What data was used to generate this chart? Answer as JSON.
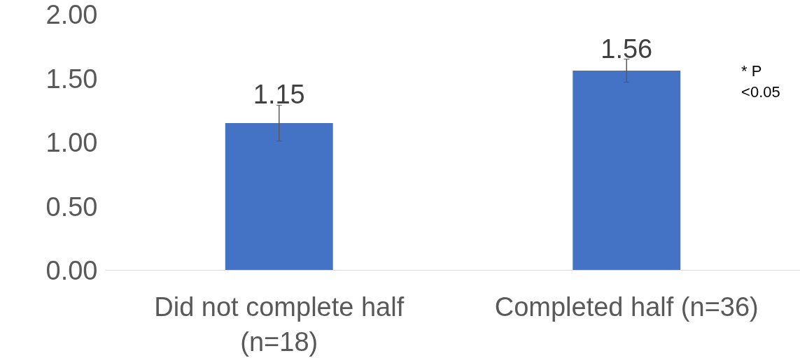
{
  "chart_data": {
    "type": "bar",
    "categories": [
      "Did not complete half (n=18)",
      "Completed half (n=36)"
    ],
    "values": [
      1.15,
      1.56
    ],
    "color": "#4472c4",
    "errors": [
      0.14,
      0.09
    ],
    "ylim": [
      0,
      2
    ],
    "yticks": [
      {
        "value": 0,
        "label": "0.00"
      },
      {
        "value": 0.5,
        "label": "0.50"
      },
      {
        "value": 1,
        "label": "1.00"
      },
      {
        "value": 1.5,
        "label": "1.50"
      },
      {
        "value": 2,
        "label": "2.00"
      }
    ],
    "data_labels": true,
    "grid": false,
    "annotations": [
      "* P <0.05"
    ]
  }
}
